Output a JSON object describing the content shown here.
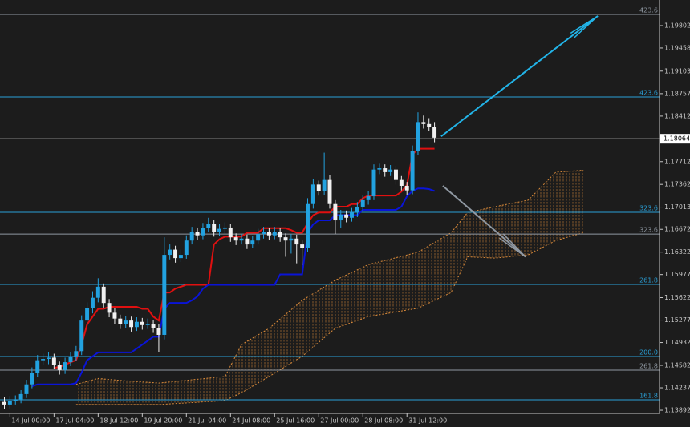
{
  "chart_data": {
    "type": "candlestick",
    "colors": {
      "background": "#1c1c1c",
      "up": "#22a2e0",
      "down": "#f0f0f0",
      "axis": "#c8c8c8"
    },
    "xlim": [
      -0.8,
      118.8
    ],
    "ylim": [
      1.13794,
      1.20196
    ],
    "yticks": [
      1.19802,
      1.19458,
      1.19103,
      1.18757,
      1.18412,
      1.17712,
      1.17362,
      1.17013,
      1.16672,
      1.16322,
      1.15977,
      1.15622,
      1.15277,
      1.14932,
      1.14582,
      1.14237,
      1.13892
    ],
    "xticks": [
      {
        "value": 1,
        "label": "14 Jul 00:00"
      },
      {
        "value": 9,
        "label": "17 Jul 04:00"
      },
      {
        "value": 17,
        "label": "18 Jul 12:00"
      },
      {
        "value": 25,
        "label": "19 Jul 20:00"
      },
      {
        "value": 33,
        "label": "21 Jul 04:00"
      },
      {
        "value": 41,
        "label": "24 Jul 08:00"
      },
      {
        "value": 49,
        "label": "25 Jul 16:00"
      },
      {
        "value": 57,
        "label": "27 Jul 00:00"
      },
      {
        "value": 65,
        "label": "28 Jul 08:00"
      },
      {
        "value": 73,
        "label": "31 Jul 12:00"
      }
    ],
    "current_price": 1.18064,
    "ohlc": [
      [
        1.1402,
        1.1409,
        1.1391,
        1.1398
      ],
      [
        1.1398,
        1.1411,
        1.1392,
        1.1404
      ],
      [
        1.1404,
        1.1412,
        1.1398,
        1.1406
      ],
      [
        1.1406,
        1.142,
        1.14,
        1.1414
      ],
      [
        1.1414,
        1.1436,
        1.1408,
        1.1429
      ],
      [
        1.1429,
        1.1455,
        1.1423,
        1.1447
      ],
      [
        1.1447,
        1.1474,
        1.144,
        1.1466
      ],
      [
        1.1466,
        1.1476,
        1.1459,
        1.1468
      ],
      [
        1.1468,
        1.1478,
        1.146,
        1.147
      ],
      [
        1.147,
        1.1476,
        1.1452,
        1.1459
      ],
      [
        1.1459,
        1.1464,
        1.1444,
        1.1451
      ],
      [
        1.1451,
        1.147,
        1.1445,
        1.1463
      ],
      [
        1.1463,
        1.1479,
        1.1457,
        1.1472
      ],
      [
        1.1472,
        1.1488,
        1.1465,
        1.148
      ],
      [
        1.148,
        1.1535,
        1.1474,
        1.1527
      ],
      [
        1.1527,
        1.1555,
        1.152,
        1.1546
      ],
      [
        1.1546,
        1.1572,
        1.1538,
        1.1562
      ],
      [
        1.1562,
        1.1592,
        1.1555,
        1.1579
      ],
      [
        1.1579,
        1.1584,
        1.1547,
        1.1554
      ],
      [
        1.1554,
        1.156,
        1.1532,
        1.1539
      ],
      [
        1.1539,
        1.1546,
        1.1522,
        1.153
      ],
      [
        1.153,
        1.1536,
        1.1514,
        1.1521
      ],
      [
        1.1521,
        1.1534,
        1.1515,
        1.1527
      ],
      [
        1.1527,
        1.1533,
        1.151,
        1.1517
      ],
      [
        1.1517,
        1.1532,
        1.1511,
        1.1525
      ],
      [
        1.1525,
        1.1531,
        1.1513,
        1.152
      ],
      [
        1.152,
        1.153,
        1.1514,
        1.1522
      ],
      [
        1.1522,
        1.1528,
        1.1508,
        1.1515
      ],
      [
        1.1515,
        1.1521,
        1.1478,
        1.1505
      ],
      [
        1.1505,
        1.1655,
        1.1498,
        1.1628
      ],
      [
        1.1628,
        1.1644,
        1.1621,
        1.1636
      ],
      [
        1.1636,
        1.1642,
        1.1616,
        1.1623
      ],
      [
        1.1623,
        1.1636,
        1.1617,
        1.1628
      ],
      [
        1.1628,
        1.1658,
        1.1622,
        1.165
      ],
      [
        1.165,
        1.1671,
        1.1644,
        1.1663
      ],
      [
        1.1663,
        1.167,
        1.1651,
        1.1658
      ],
      [
        1.1658,
        1.1677,
        1.1652,
        1.1669
      ],
      [
        1.1669,
        1.1685,
        1.1663,
        1.1675
      ],
      [
        1.1675,
        1.1681,
        1.1656,
        1.1663
      ],
      [
        1.1663,
        1.1676,
        1.1657,
        1.1668
      ],
      [
        1.1668,
        1.1678,
        1.1661,
        1.167
      ],
      [
        1.167,
        1.1676,
        1.1648,
        1.1655
      ],
      [
        1.1655,
        1.1661,
        1.1643,
        1.165
      ],
      [
        1.165,
        1.166,
        1.1644,
        1.1653
      ],
      [
        1.1653,
        1.1659,
        1.1637,
        1.1644
      ],
      [
        1.1644,
        1.1657,
        1.1638,
        1.165
      ],
      [
        1.165,
        1.1668,
        1.1644,
        1.166
      ],
      [
        1.166,
        1.1671,
        1.1653,
        1.1663
      ],
      [
        1.1663,
        1.1669,
        1.1651,
        1.1658
      ],
      [
        1.1658,
        1.1671,
        1.1652,
        1.1663
      ],
      [
        1.1663,
        1.1669,
        1.1648,
        1.1655
      ],
      [
        1.1655,
        1.1661,
        1.1625,
        1.165
      ],
      [
        1.165,
        1.166,
        1.163,
        1.1653
      ],
      [
        1.1653,
        1.1659,
        1.1615,
        1.1644
      ],
      [
        1.1644,
        1.165,
        1.1612,
        1.1638
      ],
      [
        1.1638,
        1.1715,
        1.1632,
        1.1706
      ],
      [
        1.1706,
        1.1745,
        1.1699,
        1.1736
      ],
      [
        1.1736,
        1.1742,
        1.1719,
        1.1726
      ],
      [
        1.1726,
        1.1785,
        1.172,
        1.1743
      ],
      [
        1.1743,
        1.175,
        1.1699,
        1.1706
      ],
      [
        1.1706,
        1.1712,
        1.166,
        1.1681
      ],
      [
        1.1681,
        1.1697,
        1.167,
        1.169
      ],
      [
        1.169,
        1.1696,
        1.1678,
        1.1685
      ],
      [
        1.1685,
        1.17,
        1.1679,
        1.1693
      ],
      [
        1.1693,
        1.1709,
        1.1686,
        1.1702
      ],
      [
        1.1702,
        1.1719,
        1.1695,
        1.1712
      ],
      [
        1.1712,
        1.1726,
        1.1705,
        1.1718
      ],
      [
        1.1718,
        1.1767,
        1.1712,
        1.1759
      ],
      [
        1.1759,
        1.1768,
        1.1752,
        1.1761
      ],
      [
        1.1761,
        1.1767,
        1.1748,
        1.1755
      ],
      [
        1.1755,
        1.1766,
        1.1749,
        1.1759
      ],
      [
        1.1759,
        1.1765,
        1.1736,
        1.1743
      ],
      [
        1.1743,
        1.1749,
        1.1727,
        1.1734
      ],
      [
        1.1734,
        1.174,
        1.172,
        1.1727
      ],
      [
        1.1727,
        1.1796,
        1.1721,
        1.1788
      ],
      [
        1.1788,
        1.1847,
        1.1781,
        1.1832
      ],
      [
        1.1832,
        1.1842,
        1.1822,
        1.1829
      ],
      [
        1.1829,
        1.1838,
        1.1818,
        1.1825
      ],
      [
        1.1825,
        1.1832,
        1.1801,
        1.1808
      ]
    ],
    "lines": [
      {
        "color": "#e01010",
        "values": [
          null,
          null,
          null,
          null,
          null,
          null,
          null,
          null,
          null,
          1.1454,
          1.1456,
          1.1459,
          1.1463,
          1.1466,
          1.149,
          1.1521,
          1.1533,
          1.1545,
          1.1545,
          1.1548,
          1.1548,
          1.1548,
          1.1548,
          1.1548,
          1.1548,
          1.1545,
          1.1545,
          1.1533,
          1.1527,
          1.157,
          1.157,
          1.1576,
          1.1579,
          1.1582,
          1.1582,
          1.1582,
          1.1582,
          1.1582,
          1.1644,
          1.1652,
          1.1656,
          1.1656,
          1.1656,
          1.1656,
          1.1662,
          1.1662,
          1.1662,
          1.1669,
          1.1669,
          1.1669,
          1.1669,
          1.1669,
          1.1666,
          1.1662,
          1.1662,
          1.1677,
          1.1689,
          1.1693,
          1.1693,
          1.1693,
          1.1702,
          1.1702,
          1.1702,
          1.1706,
          1.1706,
          1.1715,
          1.1719,
          1.1719,
          1.1719,
          1.1719,
          1.1719,
          1.1719,
          1.1725,
          1.1735,
          1.1782,
          1.1791,
          1.1791,
          1.1791,
          1.1791
        ]
      },
      {
        "color": "#0a14d8",
        "values": [
          null,
          null,
          null,
          null,
          null,
          1.1426,
          1.1429,
          1.1429,
          1.1429,
          1.1429,
          1.1429,
          1.1429,
          1.1429,
          1.1431,
          1.1447,
          1.1466,
          1.1472,
          1.1478,
          1.1478,
          1.1478,
          1.1478,
          1.1478,
          1.1478,
          1.1478,
          1.1484,
          1.149,
          1.1496,
          1.1502,
          1.1502,
          1.1545,
          1.1554,
          1.1554,
          1.1554,
          1.1554,
          1.1558,
          1.1564,
          1.1576,
          1.1582,
          1.1582,
          1.1582,
          1.1582,
          1.1582,
          1.1582,
          1.1582,
          1.1582,
          1.1582,
          1.1582,
          1.1582,
          1.1582,
          1.1582,
          1.1598,
          1.1598,
          1.1598,
          1.1598,
          1.1598,
          1.1662,
          1.1675,
          1.1681,
          1.1681,
          1.1681,
          1.1689,
          1.1689,
          1.1689,
          1.1689,
          1.1689,
          1.1697,
          1.1697,
          1.1697,
          1.1697,
          1.1697,
          1.1697,
          1.1697,
          1.1702,
          1.1718,
          1.1726,
          1.173,
          1.173,
          1.1729,
          1.1726
        ]
      }
    ],
    "cloud": {
      "color": "#d98a3a",
      "x": [
        13,
        17,
        21,
        28,
        40,
        43,
        48,
        54,
        60,
        66,
        75,
        81,
        84,
        89,
        95,
        100,
        105
      ],
      "upper": [
        1.1429,
        1.1438,
        1.1435,
        1.1431,
        1.1441,
        1.149,
        1.1515,
        1.1558,
        1.1589,
        1.1613,
        1.1632,
        1.1662,
        1.1693,
        1.1702,
        1.1712,
        1.1755,
        1.1758
      ],
      "lower": [
        1.1398,
        1.1398,
        1.1398,
        1.1398,
        1.1404,
        1.1416,
        1.1441,
        1.1472,
        1.1515,
        1.1533,
        1.1546,
        1.157,
        1.1625,
        1.1623,
        1.1628,
        1.165,
        1.1662
      ]
    },
    "levels": [
      {
        "label": "423.6",
        "value": 1.19974,
        "color": "#8f98a2"
      },
      {
        "label": "423.6",
        "value": 1.18706,
        "color": "#2aa0d8"
      },
      {
        "label": "323.6",
        "value": 1.16933,
        "color": "#2aa0d8"
      },
      {
        "label": "323.6",
        "value": 1.166,
        "color": "#8f98a2"
      },
      {
        "label": "261.8",
        "value": 1.15825,
        "color": "#2aa0d8"
      },
      {
        "label": "200.0",
        "value": 1.14717,
        "color": "#2aa0d8"
      },
      {
        "label": "261.8",
        "value": 1.14508,
        "color": "#8f98a2"
      },
      {
        "label": "161.8",
        "value": 1.14052,
        "color": "#2aa0d8"
      }
    ],
    "arrows": [
      {
        "color": "#22b4e8",
        "from": [
          79.2,
          1.181
        ],
        "to": [
          107.6,
          1.1995
        ]
      },
      {
        "color": "#8f98a2",
        "from": [
          79.5,
          1.1734
        ],
        "to": [
          94.5,
          1.1625
        ]
      }
    ]
  }
}
